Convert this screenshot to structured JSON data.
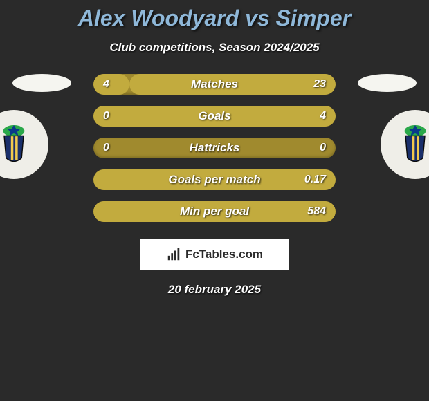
{
  "title": {
    "text": "Alex Woodyard vs Simper",
    "fontsize": 32,
    "color": "#8fb8d9"
  },
  "subtitle": {
    "text": "Club competitions, Season 2024/2025",
    "fontsize": 17,
    "color": "#ffffff"
  },
  "colors": {
    "background": "#2a2a2a",
    "bar_base": "#a08a2e",
    "bar_fill": "#c2ab3e",
    "text": "#ffffff",
    "flag_bg": "#f5f5f0",
    "crest_bg": "#efeee8"
  },
  "bars": {
    "height": 30,
    "radius": 16,
    "gap": 16,
    "label_fontsize": 17,
    "value_fontsize": 16,
    "rows": [
      {
        "label": "Matches",
        "left": "4",
        "right": "23",
        "left_pct": 14.8,
        "right_pct": 85.2
      },
      {
        "label": "Goals",
        "left": "0",
        "right": "4",
        "left_pct": 0.0,
        "right_pct": 100.0
      },
      {
        "label": "Hattricks",
        "left": "0",
        "right": "0",
        "left_pct": 0.0,
        "right_pct": 0.0
      },
      {
        "label": "Goals per match",
        "left": "",
        "right": "0.17",
        "left_pct": 0.0,
        "right_pct": 100.0
      },
      {
        "label": "Min per goal",
        "left": "",
        "right": "584",
        "left_pct": 0.0,
        "right_pct": 100.0
      }
    ]
  },
  "brand": {
    "text": "FcTables.com",
    "fontsize": 17,
    "box_bg": "#ffffff",
    "text_color": "#2a2a2a"
  },
  "date": {
    "text": "20 february 2025",
    "fontsize": 17
  },
  "crest": {
    "shield_color": "#1a2f6b",
    "stripe_color": "#f2c94c",
    "crown_color": "#2aa84a",
    "star_color": "#0a3a8a"
  }
}
